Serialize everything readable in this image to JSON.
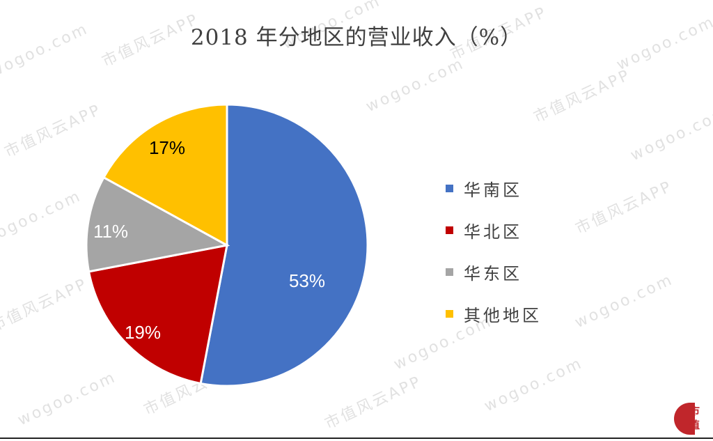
{
  "title": "2018 年分地区的营业收入（%）",
  "watermark": {
    "text_a": "wogoo.com",
    "text_b": "市值风云APP"
  },
  "logo": {
    "text_top": "市",
    "text_bottom": "值"
  },
  "legend": [
    {
      "label": "华南区",
      "color": "#4472C4"
    },
    {
      "label": "华北区",
      "color": "#C00000"
    },
    {
      "label": "华东区",
      "color": "#A5A5A5"
    },
    {
      "label": "其他地区",
      "color": "#FFC000"
    }
  ],
  "labels": {
    "south": "53%",
    "north": "19%",
    "east": "11%",
    "other": "17%"
  },
  "chart_data": {
    "type": "pie",
    "title": "2018 年分地区的营业收入（%）",
    "categories": [
      "华南区",
      "华北区",
      "华东区",
      "其他地区"
    ],
    "values": [
      53,
      19,
      11,
      17
    ],
    "colors": [
      "#4472C4",
      "#C00000",
      "#A5A5A5",
      "#FFC000"
    ],
    "data_labels": [
      "53%",
      "19%",
      "11%",
      "17%"
    ],
    "start_angle": "12 o'clock, clockwise",
    "legend_position": "right"
  }
}
